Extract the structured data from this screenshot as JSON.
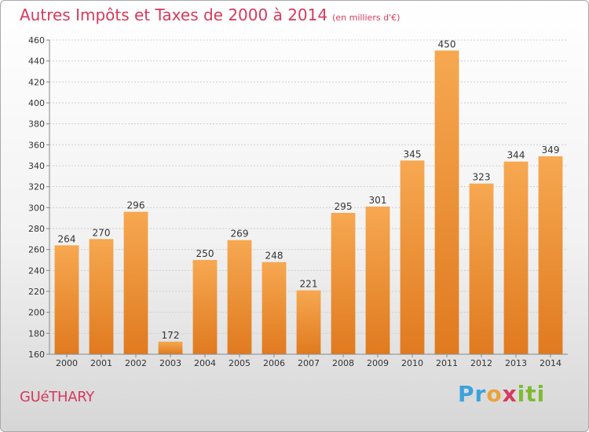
{
  "title": "Autres Impôts et Taxes de 2000 à 2014",
  "subtitle": "(en milliers d'€)",
  "city": "GUéTHARY",
  "logo": {
    "letters": [
      "P",
      "r",
      "o",
      "x",
      "i",
      "t",
      "i"
    ],
    "colors": [
      "#3ca2dc",
      "#3ca2dc",
      "#e8a33a",
      "#d63a5c",
      "#7dbb2f",
      "#7dbb2f",
      "#7dbb2f"
    ]
  },
  "colors": {
    "bar_light": "#f6a851",
    "bar_dark": "#e07a1f",
    "title": "#d63a5c",
    "grid": "#d0d0d0",
    "axis": "#888888"
  },
  "chart_data": {
    "type": "bar",
    "categories": [
      "2000",
      "2001",
      "2002",
      "2003",
      "2004",
      "2005",
      "2006",
      "2007",
      "2008",
      "2009",
      "2010",
      "2011",
      "2012",
      "2013",
      "2014"
    ],
    "values": [
      264,
      270,
      296,
      172,
      250,
      269,
      248,
      221,
      295,
      301,
      345,
      450,
      323,
      344,
      349
    ],
    "ylim": [
      160,
      460
    ],
    "yticks": [
      160,
      180,
      200,
      220,
      240,
      260,
      280,
      300,
      320,
      340,
      360,
      380,
      400,
      420,
      440,
      460
    ],
    "grid": true,
    "xlabel": "",
    "ylabel": ""
  }
}
